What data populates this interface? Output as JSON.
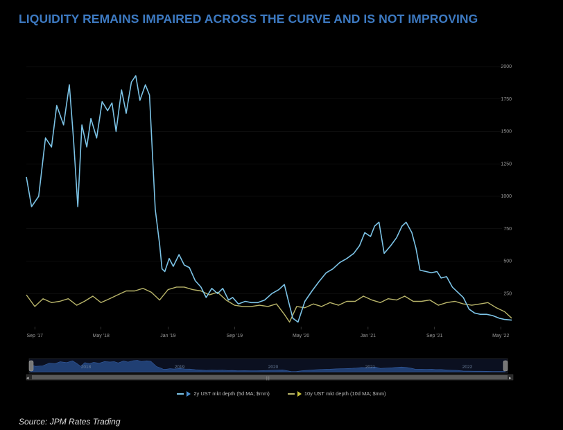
{
  "title": "LIQUIDITY REMAINS IMPAIRED ACROSS THE CURVE AND IS NOT IMPROVING",
  "source": "Source: JPM Rates Trading",
  "colors": {
    "title": "#3d7ac2",
    "series_2y": "#7cc3e6",
    "series_10y": "#b9b56a",
    "navigator": "#2a4f8c"
  },
  "chart_data": {
    "type": "line",
    "title": "",
    "xlabel": "",
    "ylabel": "",
    "ylim": [
      0,
      2000
    ],
    "y_ticks": [
      "250",
      "500",
      "750",
      "1000",
      "1250",
      "1500",
      "1750",
      "2000"
    ],
    "x_ticks": [
      {
        "label": "Sep '17",
        "date": "2017-09-01"
      },
      {
        "label": "May '18",
        "date": "2018-05-01"
      },
      {
        "label": "Jan '19",
        "date": "2019-01-01"
      },
      {
        "label": "Sep '19",
        "date": "2019-09-01"
      },
      {
        "label": "May '20",
        "date": "2020-05-01"
      },
      {
        "label": "Jan '21",
        "date": "2021-01-01"
      },
      {
        "label": "Sep '21",
        "date": "2021-09-01"
      },
      {
        "label": "May '22",
        "date": "2022-05-01"
      }
    ],
    "xlim": [
      "2017-08-01",
      "2022-06-15"
    ],
    "legend_position": "bottom",
    "navigator_labels": [
      "2018",
      "2019",
      "2020",
      "2021",
      "2022"
    ],
    "series": [
      {
        "name": "2y UST mkt depth (5d MA; $mm)",
        "x": [
          "2017-08-01",
          "2017-08-20",
          "2017-09-15",
          "2017-10-10",
          "2017-11-01",
          "2017-11-20",
          "2017-12-15",
          "2018-01-05",
          "2018-01-20",
          "2018-02-05",
          "2018-02-20",
          "2018-03-10",
          "2018-03-25",
          "2018-04-15",
          "2018-05-05",
          "2018-05-25",
          "2018-06-10",
          "2018-06-25",
          "2018-07-15",
          "2018-08-01",
          "2018-08-20",
          "2018-09-05",
          "2018-09-20",
          "2018-10-10",
          "2018-10-25",
          "2018-11-15",
          "2018-12-01",
          "2018-12-10",
          "2018-12-20",
          "2019-01-05",
          "2019-01-20",
          "2019-02-10",
          "2019-03-01",
          "2019-03-20",
          "2019-04-10",
          "2019-05-01",
          "2019-05-20",
          "2019-06-10",
          "2019-07-01",
          "2019-07-20",
          "2019-08-10",
          "2019-08-25",
          "2019-09-15",
          "2019-10-10",
          "2019-11-01",
          "2019-11-25",
          "2019-12-20",
          "2020-01-15",
          "2020-02-10",
          "2020-03-01",
          "2020-03-15",
          "2020-04-01",
          "2020-04-20",
          "2020-05-15",
          "2020-06-10",
          "2020-07-05",
          "2020-08-01",
          "2020-08-25",
          "2020-09-20",
          "2020-10-15",
          "2020-11-10",
          "2020-12-01",
          "2020-12-20",
          "2021-01-10",
          "2021-01-25",
          "2021-02-10",
          "2021-03-01",
          "2021-03-25",
          "2021-04-15",
          "2021-05-05",
          "2021-05-20",
          "2021-06-10",
          "2021-06-25",
          "2021-07-10",
          "2021-08-01",
          "2021-08-20",
          "2021-09-10",
          "2021-09-25",
          "2021-10-15",
          "2021-11-05",
          "2021-11-25",
          "2021-12-15",
          "2022-01-05",
          "2022-01-25",
          "2022-02-15",
          "2022-03-10",
          "2022-04-01",
          "2022-04-25",
          "2022-05-15",
          "2022-06-10"
        ],
        "values": [
          1150,
          920,
          1000,
          1450,
          1380,
          1700,
          1550,
          1860,
          1450,
          920,
          1550,
          1380,
          1600,
          1450,
          1730,
          1660,
          1720,
          1500,
          1820,
          1640,
          1880,
          1930,
          1740,
          1860,
          1780,
          900,
          630,
          440,
          420,
          520,
          460,
          550,
          470,
          450,
          350,
          300,
          220,
          290,
          250,
          290,
          200,
          220,
          170,
          190,
          180,
          180,
          200,
          250,
          280,
          320,
          200,
          60,
          30,
          190,
          270,
          340,
          410,
          440,
          490,
          520,
          560,
          620,
          720,
          690,
          770,
          800,
          560,
          620,
          680,
          770,
          800,
          720,
          600,
          430,
          420,
          410,
          420,
          370,
          380,
          300,
          260,
          220,
          130,
          100,
          90,
          90,
          80,
          60,
          50,
          45
        ]
      },
      {
        "name": "10y UST mkt depth (10d MA; $mm)",
        "x": [
          "2017-08-01",
          "2017-09-01",
          "2017-10-01",
          "2017-11-01",
          "2017-12-01",
          "2018-01-01",
          "2018-02-01",
          "2018-03-01",
          "2018-04-01",
          "2018-05-01",
          "2018-06-01",
          "2018-07-01",
          "2018-08-01",
          "2018-09-01",
          "2018-10-01",
          "2018-11-01",
          "2018-12-01",
          "2019-01-01",
          "2019-02-01",
          "2019-03-01",
          "2019-04-01",
          "2019-05-01",
          "2019-06-01",
          "2019-07-01",
          "2019-08-01",
          "2019-09-01",
          "2019-10-01",
          "2019-11-01",
          "2019-12-01",
          "2020-01-01",
          "2020-02-01",
          "2020-03-01",
          "2020-03-20",
          "2020-04-15",
          "2020-05-15",
          "2020-06-15",
          "2020-07-15",
          "2020-08-15",
          "2020-09-15",
          "2020-10-15",
          "2020-11-15",
          "2020-12-15",
          "2021-01-15",
          "2021-02-15",
          "2021-03-15",
          "2021-04-15",
          "2021-05-15",
          "2021-06-15",
          "2021-07-15",
          "2021-08-15",
          "2021-09-15",
          "2021-10-15",
          "2021-11-15",
          "2021-12-15",
          "2022-01-15",
          "2022-02-15",
          "2022-03-15",
          "2022-04-15",
          "2022-05-15",
          "2022-06-10"
        ],
        "values": [
          240,
          150,
          210,
          180,
          190,
          210,
          160,
          190,
          230,
          180,
          210,
          240,
          270,
          270,
          290,
          260,
          200,
          280,
          300,
          300,
          280,
          270,
          240,
          260,
          200,
          160,
          150,
          150,
          160,
          150,
          170,
          90,
          30,
          150,
          140,
          170,
          150,
          180,
          160,
          190,
          190,
          230,
          200,
          180,
          210,
          200,
          230,
          190,
          190,
          200,
          160,
          180,
          190,
          170,
          160,
          170,
          180,
          140,
          110,
          60
        ]
      }
    ]
  }
}
